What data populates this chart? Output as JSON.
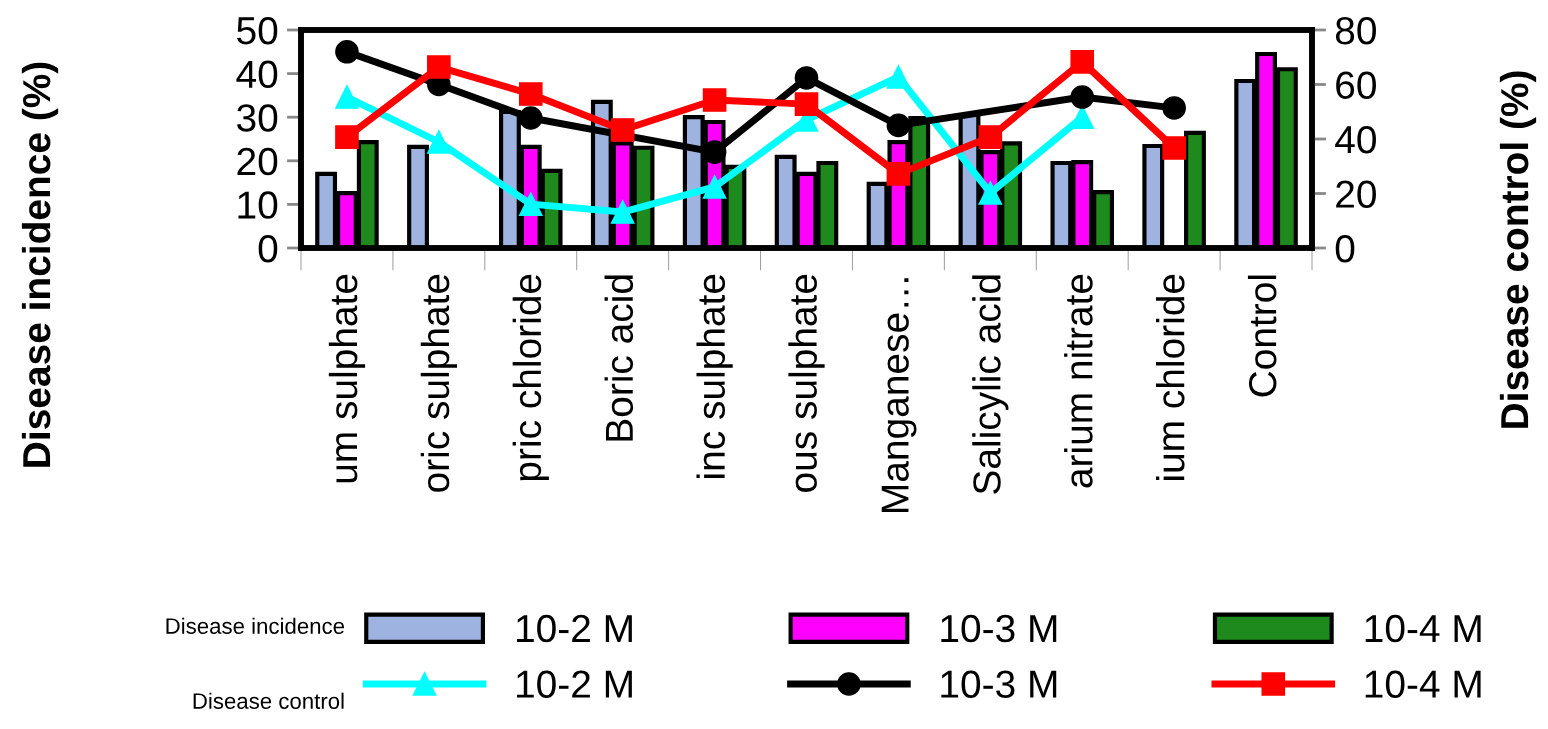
{
  "chart_data": {
    "type": "bar",
    "categories": [
      "um sulphate",
      "oric sulphate",
      "pric chloride",
      "Boric acid",
      "inc sulphate",
      "ous sulphate",
      "Manganese…",
      "Salicylic acid",
      "arium nitrate",
      "ium chloride",
      "Control"
    ],
    "ylabel": "Disease incidence (%)",
    "y2label": "Disease control (%)",
    "ylim": [
      0,
      50
    ],
    "yticks": [
      0,
      10,
      20,
      30,
      40,
      50
    ],
    "y2lim": [
      0,
      80
    ],
    "y2ticks": [
      0,
      20,
      40,
      60,
      80
    ],
    "legend": "bottom",
    "grid": false,
    "annotations": [
      "Disease incidence",
      "Disease control"
    ],
    "series": [
      {
        "name": "10-2 M",
        "color": "#9fb3e0",
        "values": [
          17,
          23.2,
          31.2,
          33.5,
          30,
          20.9,
          14.7,
          30.5,
          19.5,
          23.4,
          38.3
        ]
      },
      {
        "name": "10-3 M",
        "color": "#ff00ff",
        "values": [
          12.6,
          null,
          23.2,
          24,
          28.9,
          17,
          24.3,
          22,
          19.7,
          null,
          44.5
        ]
      },
      {
        "name": "10-4 M",
        "color": "#1e8a1e",
        "values": [
          24.3,
          null,
          17.7,
          23,
          18.6,
          19.5,
          29.8,
          24,
          12.8,
          26.4,
          41
        ]
      },
      {
        "name": "10-2 M",
        "type": "line",
        "axis": "y2",
        "marker": "triangle",
        "color": "#00ffff",
        "values": [
          55.4,
          38.9,
          16.1,
          13.2,
          22.4,
          47,
          62.8,
          20.2,
          48,
          null,
          null
        ]
      },
      {
        "name": "10-3 M",
        "type": "line",
        "axis": "y2",
        "marker": "circle",
        "color": "#000000",
        "values": [
          72,
          60,
          47.7,
          null,
          35.2,
          62.4,
          45,
          null,
          55.4,
          51.4,
          null
        ]
      },
      {
        "name": "10-4 M",
        "type": "line",
        "axis": "y2",
        "marker": "square",
        "color": "#ff0000",
        "values": [
          40.7,
          66.4,
          56.5,
          43.3,
          54.3,
          52.8,
          27.2,
          40.7,
          68.3,
          36.7,
          null
        ]
      }
    ]
  }
}
